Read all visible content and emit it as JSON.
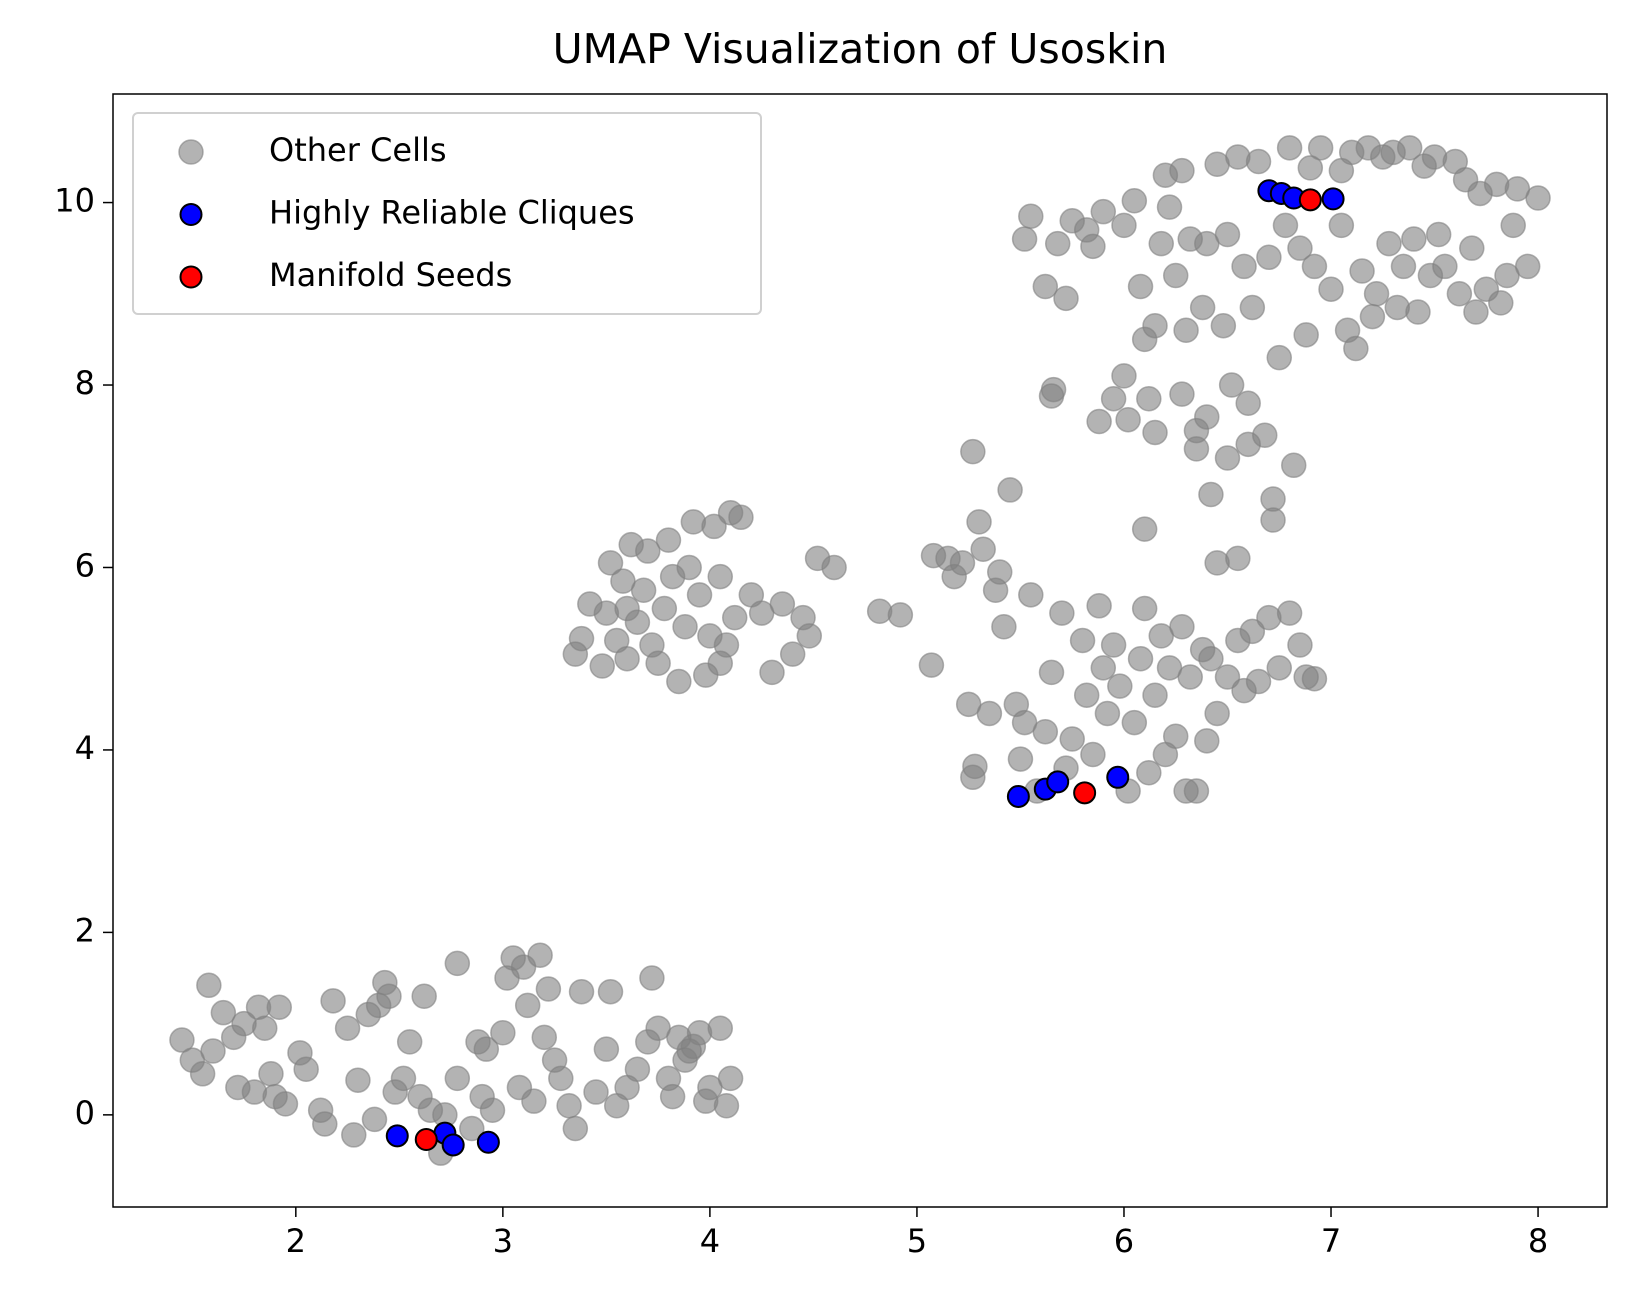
{
  "chart_data": {
    "type": "scatter",
    "title": "UMAP Visualization of Usoskin",
    "xlim": [
      1.117,
      8.333
    ],
    "ylim": [
      -1.01,
      11.19
    ],
    "xticks": [
      2,
      3,
      4,
      5,
      6,
      7,
      8
    ],
    "yticks": [
      0,
      2,
      4,
      6,
      8,
      10
    ],
    "legend": "upper left",
    "series": [
      {
        "name": "Other Cells",
        "color": "#808080",
        "x": [
          1.45,
          1.5,
          1.55,
          1.6,
          1.58,
          1.65,
          1.7,
          1.72,
          1.75,
          1.8,
          1.82,
          1.85,
          1.9,
          1.92,
          1.88,
          1.95,
          2.02,
          2.05,
          2.12,
          2.14,
          2.18,
          2.25,
          2.28,
          2.3,
          2.35,
          2.38,
          2.4,
          2.43,
          2.45,
          2.48,
          2.55,
          2.62,
          2.6,
          2.65,
          2.72,
          2.78,
          2.78,
          2.85,
          2.88,
          2.9,
          2.92,
          2.95,
          3.0,
          3.02,
          3.05,
          3.08,
          3.1,
          3.12,
          3.15,
          3.18,
          3.2,
          3.22,
          3.25,
          3.28,
          3.32,
          3.35,
          3.38,
          3.45,
          3.5,
          3.52,
          3.55,
          3.6,
          3.65,
          3.7,
          3.72,
          3.75,
          3.8,
          3.85,
          3.88,
          3.9,
          3.95,
          3.98,
          4.0,
          4.05,
          4.08,
          4.1,
          3.82,
          3.92,
          2.7,
          2.52,
          3.35,
          3.38,
          3.42,
          3.48,
          3.5,
          3.52,
          3.55,
          3.58,
          3.6,
          3.62,
          3.65,
          3.68,
          3.7,
          3.72,
          3.75,
          3.78,
          3.8,
          3.82,
          3.85,
          3.88,
          3.9,
          3.92,
          3.95,
          3.98,
          4.0,
          4.02,
          4.05,
          4.08,
          4.1,
          4.12,
          4.15,
          4.2,
          4.25,
          4.3,
          4.35,
          4.4,
          4.45,
          4.48,
          4.52,
          4.6,
          4.05,
          3.6,
          4.82,
          4.92,
          5.07,
          5.08,
          5.15,
          5.18,
          5.22,
          5.25,
          5.27,
          5.28,
          5.27,
          5.3,
          5.32,
          5.35,
          5.38,
          5.4,
          5.42,
          5.45,
          5.48,
          5.5,
          5.52,
          5.55,
          5.58,
          5.62,
          5.65,
          5.7,
          5.72,
          5.75,
          5.8,
          5.82,
          5.85,
          5.88,
          5.9,
          5.92,
          5.95,
          5.98,
          6.02,
          6.05,
          6.08,
          6.1,
          6.12,
          6.15,
          6.18,
          6.2,
          6.22,
          6.25,
          6.28,
          6.3,
          6.32,
          6.35,
          6.38,
          6.4,
          6.42,
          6.45,
          6.5,
          6.55,
          6.58,
          6.62,
          6.65,
          6.7,
          6.75,
          6.8,
          6.85,
          6.88,
          6.92,
          6.1,
          5.52,
          5.55,
          5.62,
          5.68,
          5.72,
          5.65,
          5.66,
          5.75,
          5.82,
          5.85,
          5.9,
          5.88,
          5.95,
          6.0,
          6.0,
          6.02,
          6.05,
          6.08,
          6.1,
          6.15,
          6.12,
          6.15,
          6.18,
          6.2,
          6.22,
          6.25,
          6.28,
          6.28,
          6.3,
          6.32,
          6.35,
          6.38,
          6.4,
          6.4,
          6.42,
          6.45,
          6.45,
          6.48,
          6.5,
          6.5,
          6.52,
          6.55,
          6.55,
          6.58,
          6.6,
          6.62,
          6.65,
          6.68,
          6.7,
          6.72,
          6.72,
          6.75,
          6.78,
          6.8,
          6.82,
          6.85,
          6.88,
          6.9,
          6.92,
          6.95,
          7.0,
          7.05,
          7.08,
          7.1,
          7.12,
          7.15,
          7.18,
          7.2,
          7.22,
          7.25,
          7.28,
          7.3,
          7.32,
          7.35,
          7.38,
          7.4,
          7.42,
          7.45,
          7.48,
          7.5,
          7.52,
          7.55,
          7.6,
          7.62,
          7.65,
          7.68,
          7.7,
          7.72,
          7.75,
          7.8,
          7.82,
          7.85,
          7.88,
          7.9,
          7.95,
          8.0,
          7.05,
          6.35,
          6.6
        ],
        "values": [
          0.82,
          0.6,
          0.45,
          0.7,
          1.42,
          1.12,
          0.85,
          0.3,
          1.0,
          0.25,
          1.18,
          0.95,
          0.2,
          1.18,
          0.45,
          0.12,
          0.68,
          0.5,
          0.05,
          -0.1,
          1.25,
          0.95,
          -0.22,
          0.38,
          1.1,
          -0.05,
          1.2,
          1.45,
          1.3,
          0.25,
          0.8,
          1.3,
          0.2,
          0.05,
          0.0,
          1.66,
          0.4,
          -0.15,
          0.8,
          0.2,
          0.72,
          0.05,
          0.9,
          1.5,
          1.72,
          0.3,
          1.62,
          1.2,
          0.15,
          1.75,
          0.85,
          1.38,
          0.6,
          0.4,
          0.1,
          -0.15,
          1.35,
          0.25,
          0.72,
          1.35,
          0.1,
          0.3,
          0.5,
          0.8,
          1.5,
          0.95,
          0.4,
          0.85,
          0.6,
          0.7,
          0.9,
          0.15,
          0.3,
          0.95,
          0.1,
          0.4,
          0.2,
          0.75,
          -0.42,
          0.4,
          5.05,
          5.22,
          5.6,
          4.92,
          5.5,
          6.05,
          5.2,
          5.85,
          5.0,
          6.25,
          5.4,
          5.75,
          6.18,
          5.15,
          4.95,
          5.55,
          6.3,
          5.9,
          4.75,
          5.35,
          6.0,
          6.5,
          5.7,
          4.82,
          5.25,
          6.45,
          5.9,
          5.15,
          6.6,
          5.45,
          6.55,
          5.7,
          5.5,
          4.85,
          5.6,
          5.05,
          5.45,
          5.25,
          6.1,
          6.0,
          4.95,
          5.55,
          5.52,
          5.48,
          4.93,
          6.13,
          6.1,
          5.9,
          6.05,
          4.5,
          3.7,
          3.82,
          7.27,
          6.5,
          6.2,
          4.4,
          5.75,
          5.95,
          5.35,
          6.85,
          4.5,
          3.9,
          4.3,
          5.7,
          3.55,
          4.2,
          4.85,
          5.5,
          3.8,
          4.12,
          5.2,
          4.6,
          3.95,
          5.58,
          4.9,
          4.4,
          5.15,
          4.7,
          3.55,
          4.3,
          5.0,
          5.55,
          3.75,
          4.6,
          5.25,
          3.95,
          4.9,
          4.15,
          5.35,
          3.55,
          4.8,
          3.55,
          5.1,
          4.1,
          5.0,
          4.4,
          4.8,
          5.2,
          4.65,
          5.3,
          4.75,
          5.45,
          4.9,
          5.5,
          5.15,
          4.8,
          4.78,
          6.42,
          9.6,
          9.85,
          9.08,
          9.55,
          8.95,
          7.88,
          7.95,
          9.8,
          9.7,
          9.52,
          9.9,
          7.6,
          7.85,
          9.75,
          8.1,
          7.62,
          10.02,
          9.08,
          8.5,
          8.65,
          7.85,
          7.48,
          9.55,
          10.3,
          9.95,
          9.2,
          7.9,
          10.35,
          8.6,
          9.6,
          7.3,
          8.85,
          9.55,
          7.65,
          6.8,
          10.42,
          6.05,
          8.65,
          9.65,
          7.2,
          8.0,
          10.5,
          6.1,
          9.3,
          7.8,
          8.85,
          10.45,
          7.45,
          9.4,
          6.75,
          6.52,
          8.3,
          9.75,
          10.6,
          7.12,
          9.5,
          8.55,
          10.38,
          9.3,
          10.6,
          9.05,
          9.75,
          8.6,
          10.55,
          8.4,
          9.25,
          10.6,
          8.75,
          9.0,
          10.5,
          9.55,
          10.55,
          8.85,
          9.3,
          10.6,
          9.6,
          8.8,
          10.4,
          9.2,
          10.5,
          9.65,
          9.3,
          10.45,
          9.0,
          10.25,
          9.5,
          8.8,
          10.1,
          9.05,
          10.2,
          8.9,
          9.2,
          9.75,
          10.15,
          9.3,
          10.05,
          10.35,
          7.5,
          7.35
        ]
      },
      {
        "name": "Highly Reliable Cliques",
        "color": "#0000ff",
        "x": [
          2.49,
          2.72,
          2.76,
          2.93,
          5.49,
          5.62,
          5.68,
          5.97,
          6.7,
          6.76,
          6.82,
          7.01
        ],
        "values": [
          -0.23,
          -0.2,
          -0.33,
          -0.3,
          3.49,
          3.57,
          3.65,
          3.7,
          10.13,
          10.1,
          10.05,
          10.04
        ]
      },
      {
        "name": "Manifold Seeds",
        "color": "#ff0000",
        "x": [
          2.63,
          5.81,
          6.9
        ],
        "values": [
          -0.27,
          3.53,
          10.03
        ]
      }
    ]
  }
}
